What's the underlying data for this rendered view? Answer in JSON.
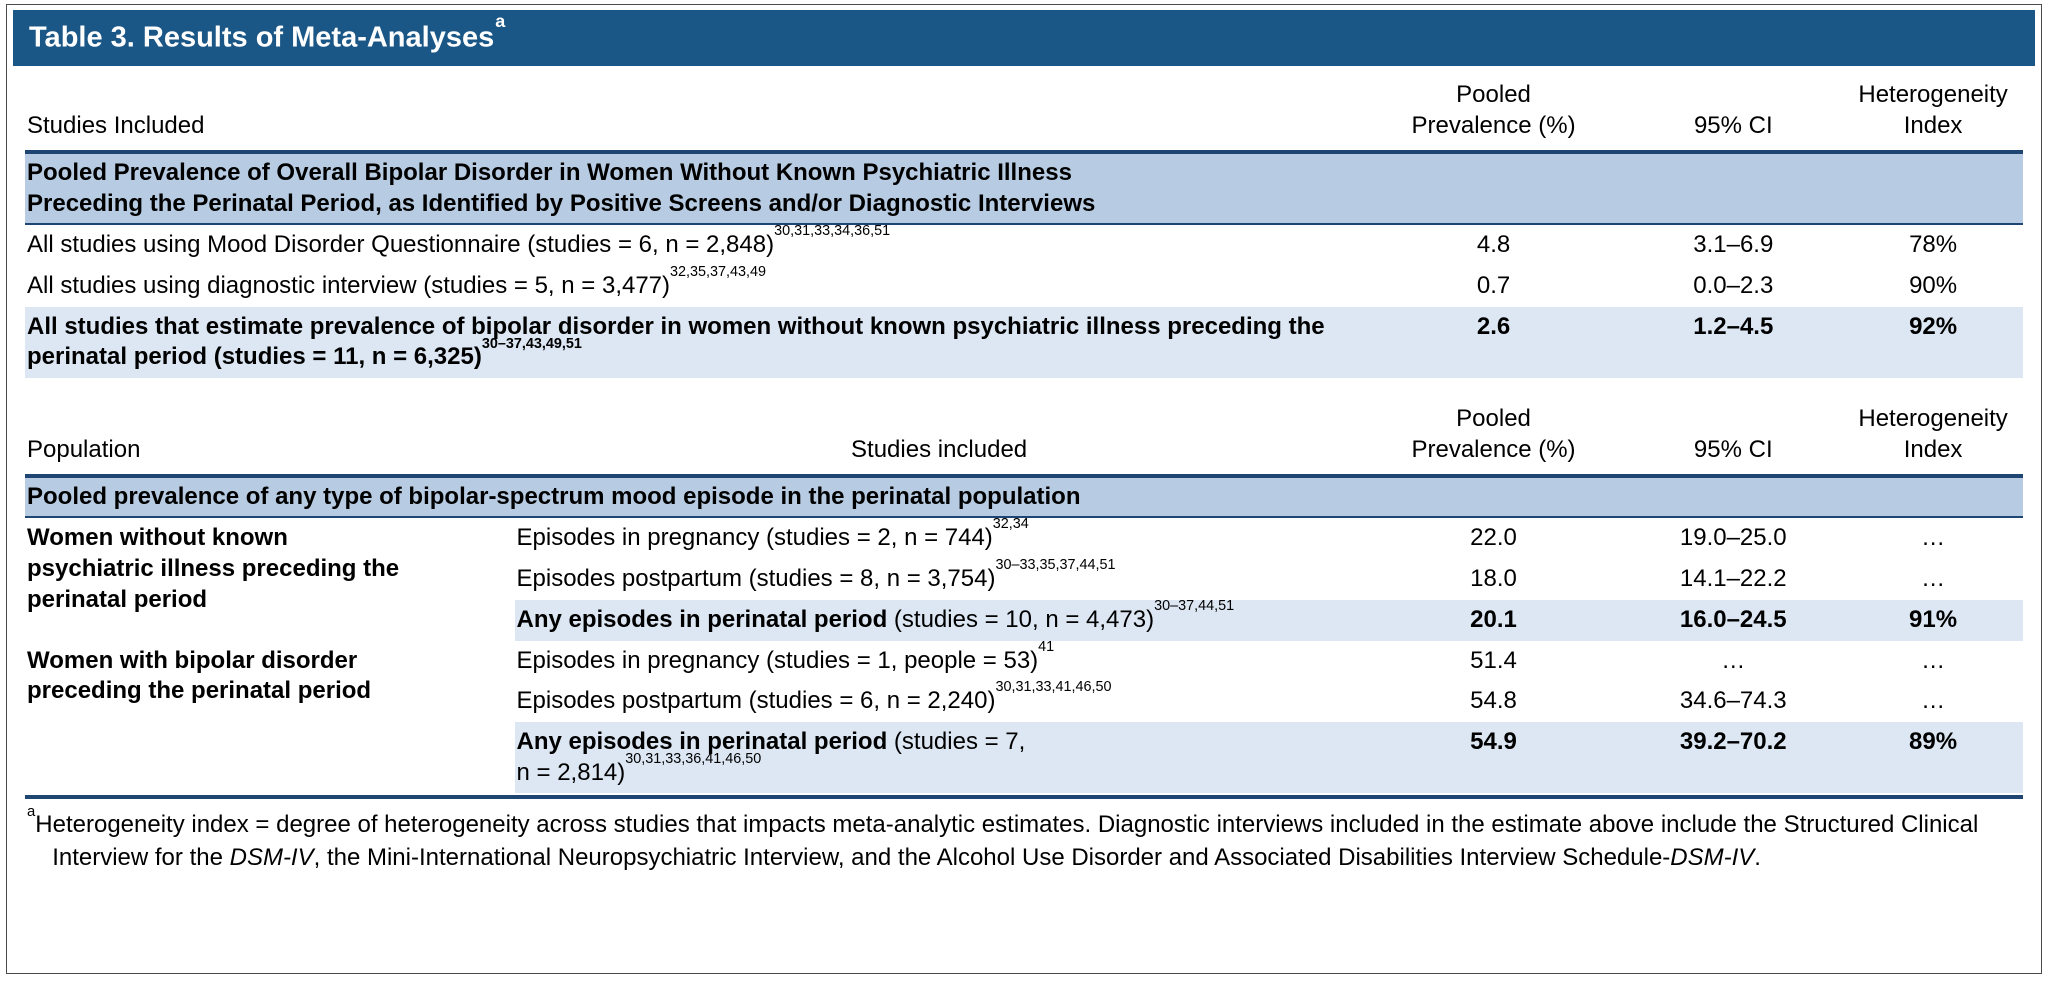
{
  "colors": {
    "title_bar": "#1b5786",
    "section_band": "#b7cbe2",
    "summary_shade": "#dce7f3",
    "rule": "#1f4572"
  },
  "title": {
    "text": "Table 3. Results of Meta-Analyses",
    "superscript": "a"
  },
  "table1": {
    "headers": {
      "studies_included": "Studies Included",
      "pooled_line1": "Pooled",
      "pooled_line2": "Prevalence (%)",
      "ci": "95% CI",
      "het_line1": "Heterogeneity",
      "het_line2": "Index"
    },
    "section_line1": "Pooled Prevalence of Overall Bipolar Disorder in Women Without Known Psychiatric Illness",
    "section_line2": "Preceding the Perinatal Period, as Identified by Positive Screens and/or Diagnostic Interviews",
    "rows": [
      {
        "label": "All studies using Mood Disorder Questionnaire (studies = 6, n = 2,848)",
        "refs": "30,31,33,34,36,51",
        "pooled": "4.8",
        "ci": "3.1–6.9",
        "het": "78%"
      },
      {
        "label": "All studies using diagnostic interview (studies = 5, n = 3,477)",
        "refs": "32,35,37,43,49",
        "pooled": "0.7",
        "ci": "0.0–2.3",
        "het": "90%"
      },
      {
        "label": "All studies that estimate prevalence of bipolar disorder in women without known psychiatric illness preceding the perinatal period (studies = 11, n = 6,325)",
        "refs": "30–37,43,49,51",
        "pooled": "2.6",
        "ci": "1.2–4.5",
        "het": "92%"
      }
    ]
  },
  "table2": {
    "headers": {
      "population": "Population",
      "studies_included": "Studies included",
      "pooled_line1": "Pooled",
      "pooled_line2": "Prevalence (%)",
      "ci": "95% CI",
      "het_line1": "Heterogeneity",
      "het_line2": "Index"
    },
    "section": "Pooled prevalence of any type of bipolar-spectrum mood episode in the perinatal population",
    "groups": [
      {
        "population_lines": [
          "Women without known",
          "psychiatric illness preceding the",
          "perinatal period"
        ],
        "rows": [
          {
            "label": "Episodes in pregnancy (studies = 2, n = 744)",
            "refs": "32,34",
            "pooled": "22.0",
            "ci": "19.0–25.0",
            "het": "…"
          },
          {
            "label": "Episodes postpartum (studies = 8, n = 3,754)",
            "refs": "30–33,35,37,44,51",
            "pooled": "18.0",
            "ci": "14.1–22.2",
            "het": "…"
          }
        ],
        "summary": {
          "bold": "Any episodes in perinatal period",
          "rest": " (studies = 10, n = 4,473)",
          "refs": "30–37,44,51",
          "pooled": "20.1",
          "ci": "16.0–24.5",
          "het": "91%"
        }
      },
      {
        "population_lines": [
          "Women with bipolar disorder",
          "preceding the perinatal period"
        ],
        "rows": [
          {
            "label": "Episodes in pregnancy (studies = 1, people = 53)",
            "refs": "41",
            "pooled": "51.4",
            "ci": "…",
            "het": "…"
          },
          {
            "label": "Episodes postpartum (studies = 6, n = 2,240)",
            "refs": "30,31,33,41,46,50",
            "pooled": "54.8",
            "ci": "34.6–74.3",
            "het": "…"
          }
        ],
        "summary": {
          "bold": "Any episodes in perinatal period",
          "rest": " (studies = 7,",
          "line2": "n = 2,814)",
          "refs": "30,31,33,36,41,46,50",
          "pooled": "54.9",
          "ci": "39.2–70.2",
          "het": "89%"
        }
      }
    ]
  },
  "footnote": {
    "superscript": "a",
    "seg1": "Heterogeneity index = degree of heterogeneity across studies that impacts meta-analytic estimates. Diagnostic interviews included in the estimate above include the Structured Clinical Interview for the ",
    "italic1": "DSM-IV",
    "seg2": ", the Mini-International Neuropsychiatric Interview, and the Alcohol Use Disorder and Associated Disabilities Interview Schedule-",
    "italic2": "DSM-IV",
    "seg3": "."
  }
}
